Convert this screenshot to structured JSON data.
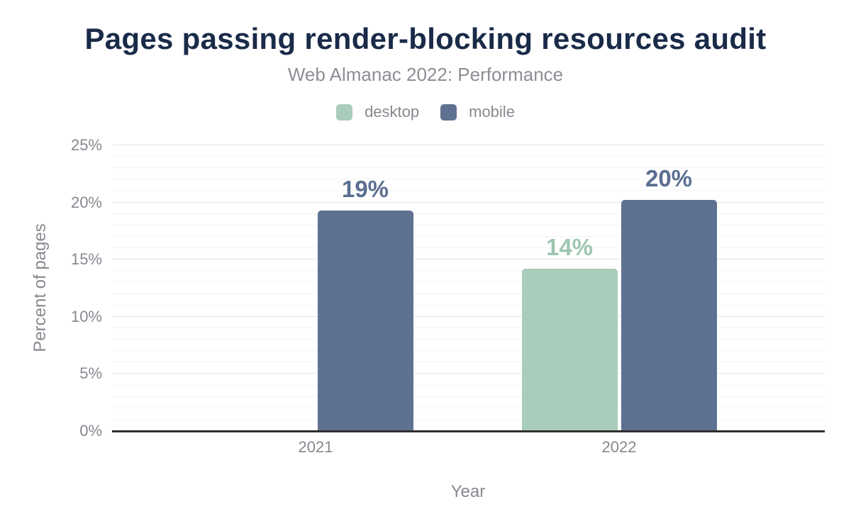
{
  "chart_data": {
    "type": "bar",
    "title": "Pages passing render-blocking resources audit",
    "subtitle": "Web Almanac 2022: Performance",
    "xlabel": "Year",
    "ylabel": "Percent of pages",
    "categories": [
      "2021",
      "2022"
    ],
    "series": [
      {
        "name": "desktop",
        "color": "#a9cdba",
        "label_color": "#9dc6b0",
        "values": [
          null,
          14.2
        ],
        "labels": [
          "",
          "14%"
        ]
      },
      {
        "name": "mobile",
        "color": "#5f7190",
        "label_color": "#5b6e91",
        "values": [
          19.3,
          20.2
        ],
        "labels": [
          "19%",
          "20%"
        ]
      }
    ],
    "ylim": [
      0,
      25
    ],
    "y_major_tick_step": 5,
    "y_minor_tick_step": 1,
    "y_tick_labels": [
      "0%",
      "5%",
      "10%",
      "15%",
      "20%",
      "25%"
    ],
    "grid": true,
    "legend_position": "top"
  },
  "colors": {
    "title": "#1a2b49",
    "subtitle": "#8b8e94",
    "axis_text": "#85898f",
    "grid_major": "#e4e4e4",
    "grid_minor": "#f4f4f4",
    "baseline": "#2f2f2f",
    "background": "#ffffff"
  }
}
